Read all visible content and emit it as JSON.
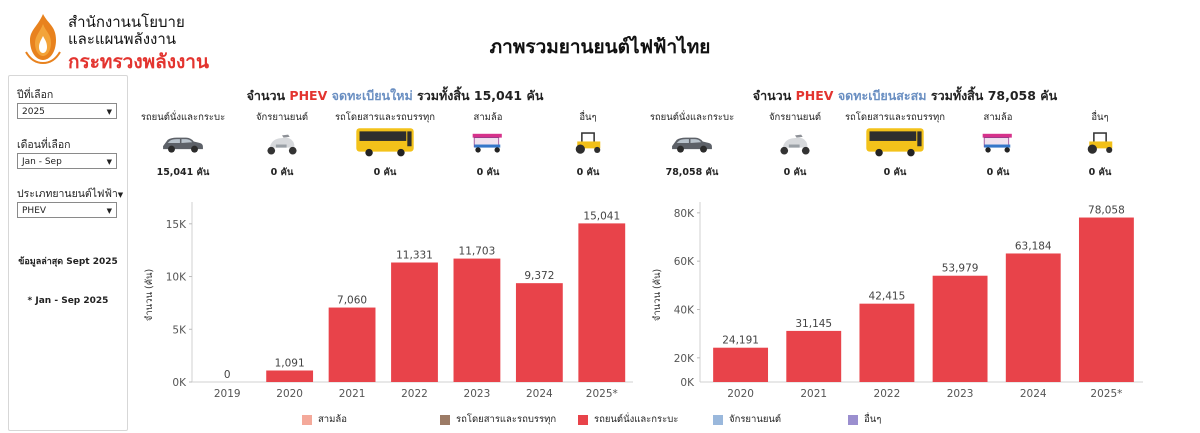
{
  "header": {
    "org_line1": "สำนักงานนโยบาย",
    "org_line2": "และแผนพลังงาน",
    "ministry": "กระทรวงพลังงาน",
    "page_title": "ภาพรวมยานยนต์ไฟฟ้าไทย"
  },
  "filters": {
    "year_label": "ปีที่เลือก",
    "year_value": "2025",
    "month_label": "เดือนที่เลือก",
    "month_value": "Jan - Sep",
    "type_label": "ประเภทยานยนต์ไฟฟ้า",
    "type_value": "PHEV",
    "latest_note": "ข้อมูลล่าสุด Sept 2025",
    "period_note": "* Jan - Sep 2025"
  },
  "left_section": {
    "title_prefix": "จำนวน",
    "title_type": "PHEV",
    "title_kind": "จดทะเบียนใหม่",
    "title_suffix": "รวมทั้งสิ้น 15,041 คัน",
    "categories": [
      {
        "label": "รถยนต์นั่งและกระบะ",
        "value": "15,041 คัน",
        "icon": "car-icon"
      },
      {
        "label": "จักรยานยนต์",
        "value": "0 คัน",
        "icon": "motorcycle-icon"
      },
      {
        "label": "รถโดยสารและรถบรรทุก",
        "value": "0 คัน",
        "icon": "bus-icon"
      },
      {
        "label": "สามล้อ",
        "value": "0 คัน",
        "icon": "tuktuk-icon"
      },
      {
        "label": "อื่นๆ",
        "value": "0 คัน",
        "icon": "tractor-icon"
      }
    ]
  },
  "right_section": {
    "title_prefix": "จำนวน",
    "title_type": "PHEV",
    "title_kind": "จดทะเบียนสะสม",
    "title_suffix": "รวมทั้งสิ้น 78,058 คัน",
    "categories": [
      {
        "label": "รถยนต์นั่งและกระบะ",
        "value": "78,058 คัน",
        "icon": "car-icon"
      },
      {
        "label": "จักรยานยนต์",
        "value": "0 คัน",
        "icon": "motorcycle-icon"
      },
      {
        "label": "รถโดยสารและรถบรรทุก",
        "value": "0 คัน",
        "icon": "bus-icon"
      },
      {
        "label": "สามล้อ",
        "value": "0 คัน",
        "icon": "tuktuk-icon"
      },
      {
        "label": "อื่นๆ",
        "value": "0 คัน",
        "icon": "tractor-icon"
      }
    ]
  },
  "chart_data": [
    {
      "type": "bar",
      "categories": [
        "2019",
        "2020",
        "2021",
        "2022",
        "2023",
        "2024",
        "2025*"
      ],
      "values": [
        0,
        1091,
        7060,
        11331,
        11703,
        9372,
        15041
      ],
      "value_labels": [
        "0",
        "1,091",
        "7,060",
        "11,331",
        "11,703",
        "9,372",
        "15,041"
      ],
      "ylabel": "จำนวน (คัน)",
      "ylim": [
        0,
        16500
      ],
      "yticks": [
        0,
        5000,
        10000,
        15000
      ],
      "ytick_labels": [
        "0K",
        "5K",
        "10K",
        "15K"
      ],
      "grid": false,
      "color": "#e8434a"
    },
    {
      "type": "bar",
      "categories": [
        "2020",
        "2021",
        "2022",
        "2023",
        "2024",
        "2025*"
      ],
      "values": [
        24191,
        31145,
        42415,
        53979,
        63184,
        78058
      ],
      "value_labels": [
        "24,191",
        "31,145",
        "42,415",
        "53,979",
        "63,184",
        "78,058"
      ],
      "ylabel": "จำนวน (คัน)",
      "ylim": [
        10000,
        82000
      ],
      "yticks": [
        20000,
        40000,
        60000,
        80000
      ],
      "ytick_labels": [
        "20K",
        "40K",
        "60K",
        "80K"
      ],
      "tick_label_lowest": "0K",
      "grid": false,
      "color": "#e8434a"
    }
  ],
  "legend": [
    {
      "label": "สามล้อ",
      "color": "#f4a99a"
    },
    {
      "label": "รถโดยสารและรถบรรทุก",
      "color": "#9c7b66"
    },
    {
      "label": "รถยนต์นั่งและกระบะ",
      "color": "#e8434a"
    },
    {
      "label": "จักรยานยนต์",
      "color": "#9ab8dc"
    },
    {
      "label": "อื่นๆ",
      "color": "#9b8fcf"
    }
  ]
}
